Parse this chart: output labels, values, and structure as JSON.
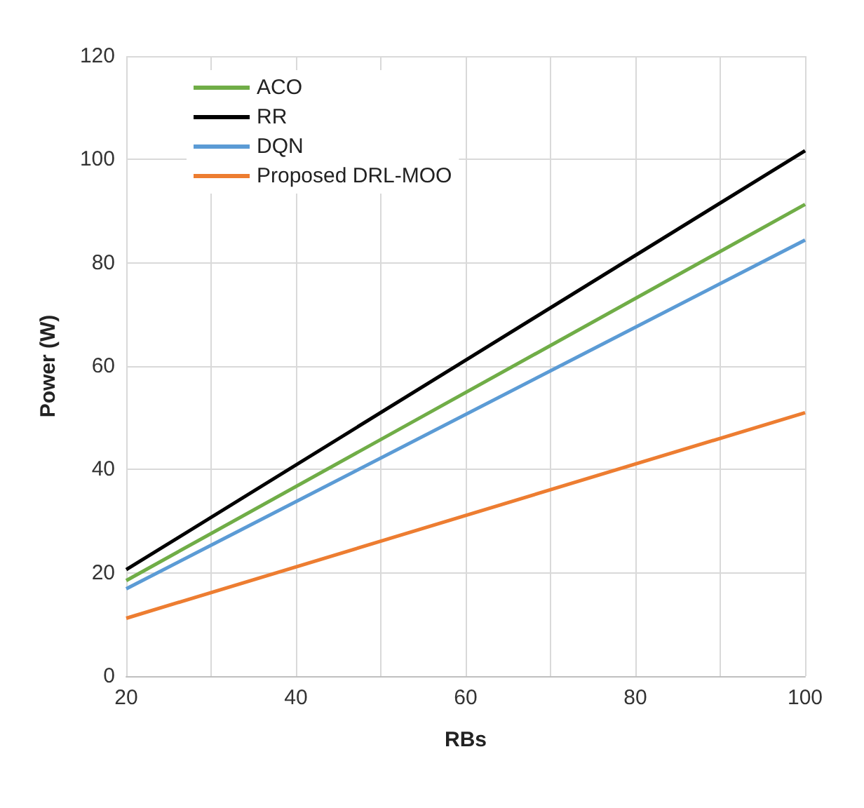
{
  "chart_data": {
    "type": "line",
    "xlabel": "RBs",
    "ylabel": "Power (W)",
    "x": [
      20,
      100
    ],
    "xlim": [
      20,
      100
    ],
    "xticks": [
      20,
      {
        "value": 30,
        "label": null
      },
      40,
      {
        "value": 50,
        "label": null
      },
      60,
      {
        "value": 70,
        "label": null
      },
      80,
      {
        "value": 90,
        "label": null
      },
      100
    ],
    "ylim": [
      0,
      120
    ],
    "yticks": [
      0,
      20,
      40,
      60,
      80,
      100,
      120
    ],
    "grid": true,
    "legend": "top left",
    "marker": "none",
    "line_style": "solid",
    "series": [
      {
        "name": "ACO",
        "color": "#70ad47",
        "values": [
          18.5,
          91.3
        ]
      },
      {
        "name": "RR",
        "color": "#000000",
        "values": [
          20.6,
          101.7
        ]
      },
      {
        "name": "DQN",
        "color": "#5b9bd5",
        "values": [
          16.9,
          84.4
        ]
      },
      {
        "name": "Proposed DRL-MOO",
        "color": "#ed7d31",
        "values": [
          11.2,
          51
        ]
      }
    ]
  }
}
